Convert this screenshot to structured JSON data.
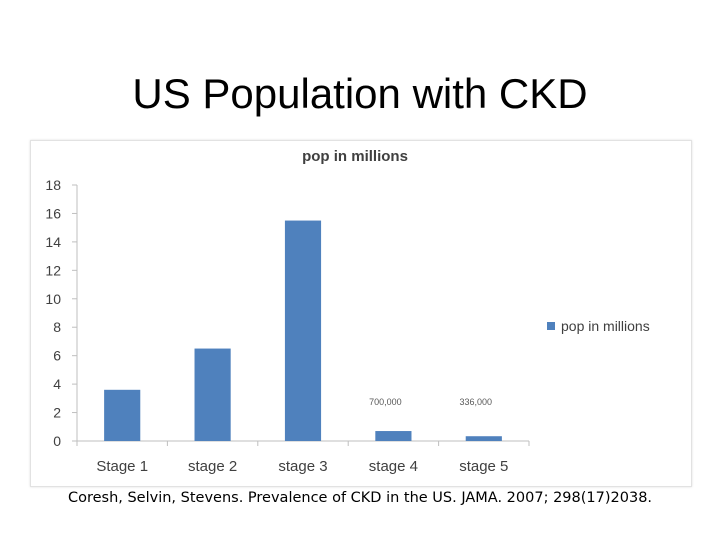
{
  "slide": {
    "title": "US Population with CKD",
    "citation": "Coresh, Selvin, Stevens. Prevalence of CKD in the US. JAMA. 2007; 298(17)2038."
  },
  "chart_data": {
    "type": "bar",
    "title": "pop in millions",
    "xlabel": "",
    "ylabel": "",
    "categories": [
      "Stage 1",
      "stage 2",
      "stage 3",
      "stage 4",
      "stage 5"
    ],
    "series": [
      {
        "name": "pop in millions",
        "color": "#4f81bd",
        "values": [
          3.6,
          6.5,
          15.5,
          0.7,
          0.336
        ]
      }
    ],
    "ylim": [
      0,
      18
    ],
    "yticks": [
      0,
      2,
      4,
      6,
      8,
      10,
      12,
      14,
      16,
      18
    ],
    "grid": false,
    "legend": "right",
    "annotations": [
      {
        "category": "stage 4",
        "text": "700,000"
      },
      {
        "category": "stage 5",
        "text": "336,000"
      }
    ]
  }
}
